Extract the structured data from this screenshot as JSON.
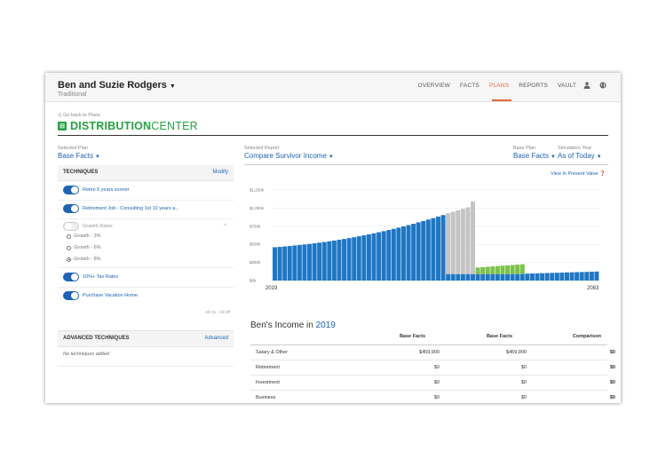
{
  "header": {
    "client_name": "Ben and Suzie Rodgers",
    "client_type": "Traditional",
    "nav": [
      "OVERVIEW",
      "FACTS",
      "PLANS",
      "REPORTS",
      "VAULT"
    ],
    "active_nav": "PLANS"
  },
  "back_link": "Go back to Plans",
  "brand": {
    "part1": "DISTRIBUTION",
    "part2": "CENTER",
    "color": "#27a243"
  },
  "selected_plan": {
    "label": "Selected Plan",
    "value": "Base Facts"
  },
  "selected_report": {
    "label": "Selected Report",
    "value": "Compare Survivor Income"
  },
  "base_plan": {
    "label": "Base Plan",
    "value": "Base Facts"
  },
  "simulation_year": {
    "label": "Simulation Year",
    "value": "As of Today"
  },
  "techniques": {
    "title": "TECHNIQUES",
    "modify": "Modify",
    "items": [
      {
        "label": "Retire 5 years sooner",
        "on": true
      },
      {
        "label": "Retirement Job - Consulting 1st 10 years a...",
        "on": true
      },
      {
        "label": "Growth Rates",
        "on": false
      },
      {
        "label": "10%+ Tax Rates",
        "on": true
      },
      {
        "label": "Purchase Vacation Home",
        "on": true
      }
    ],
    "growth_options": [
      "Growth - 3%",
      "Growth - 6%",
      "Growth - 8%"
    ],
    "growth_selected": "Growth - 8%",
    "all_on_off": "All On · All Off"
  },
  "advanced": {
    "title": "ADVANCED TECHNIQUES",
    "link": "Advanced",
    "empty": "No techniques added"
  },
  "present_value_link": "View In Present Value",
  "chart_data": {
    "type": "bar",
    "y_ticks": [
      "$1,250k",
      "$1,000k",
      "$750k",
      "$500k",
      "$250k",
      "$0k"
    ],
    "ylim": [
      0,
      1250
    ],
    "x_start_label": "2019",
    "x_end_label": "2083",
    "series_colors": {
      "base": "#1f77c4",
      "gap": "#c4c4c4",
      "survivor": "#7dc24b"
    },
    "values": [
      {
        "base": 460
      },
      {
        "base": 465
      },
      {
        "base": 471
      },
      {
        "base": 477
      },
      {
        "base": 484
      },
      {
        "base": 491
      },
      {
        "base": 498
      },
      {
        "base": 506
      },
      {
        "base": 514
      },
      {
        "base": 523
      },
      {
        "base": 532
      },
      {
        "base": 542
      },
      {
        "base": 552
      },
      {
        "base": 563
      },
      {
        "base": 574
      },
      {
        "base": 586
      },
      {
        "base": 598
      },
      {
        "base": 611
      },
      {
        "base": 624
      },
      {
        "base": 638
      },
      {
        "base": 652
      },
      {
        "base": 667
      },
      {
        "base": 682
      },
      {
        "base": 698
      },
      {
        "base": 714
      },
      {
        "base": 731
      },
      {
        "base": 748
      },
      {
        "base": 766
      },
      {
        "base": 784
      },
      {
        "base": 803
      },
      {
        "base": 822
      },
      {
        "base": 842
      },
      {
        "base": 862
      },
      {
        "base": 883
      },
      {
        "base": 904
      },
      {
        "base": 90,
        "gap": 840
      },
      {
        "base": 90,
        "gap": 860
      },
      {
        "base": 90,
        "gap": 880
      },
      {
        "base": 90,
        "gap": 900
      },
      {
        "base": 90,
        "gap": 920
      },
      {
        "base": 90,
        "gap": 1000
      },
      {
        "base": 90,
        "survivor": 90
      },
      {
        "base": 90,
        "survivor": 95
      },
      {
        "base": 90,
        "survivor": 100
      },
      {
        "base": 90,
        "survivor": 105
      },
      {
        "base": 90,
        "survivor": 110
      },
      {
        "base": 90,
        "survivor": 115
      },
      {
        "base": 90,
        "survivor": 120
      },
      {
        "base": 90,
        "survivor": 125
      },
      {
        "base": 90,
        "survivor": 130
      },
      {
        "base": 90,
        "survivor": 135
      },
      {
        "base": 96
      },
      {
        "base": 98
      },
      {
        "base": 100
      },
      {
        "base": 102
      },
      {
        "base": 104
      },
      {
        "base": 106
      },
      {
        "base": 108
      },
      {
        "base": 110
      },
      {
        "base": 112
      },
      {
        "base": 114
      },
      {
        "base": 116
      },
      {
        "base": 118
      },
      {
        "base": 120
      },
      {
        "base": 122
      },
      {
        "base": 124
      }
    ]
  },
  "income": {
    "title_prefix": "Ben's Income in",
    "year": "2019",
    "columns": [
      "Base Facts",
      "Base Facts",
      "Comparison"
    ],
    "rows": [
      {
        "name": "Salary & Other",
        "a": "$459,900",
        "b": "$459,900",
        "c": "$0"
      },
      {
        "name": "Retirement",
        "a": "$0",
        "b": "$0",
        "c": "$0"
      },
      {
        "name": "Investment",
        "a": "$0",
        "b": "$0",
        "c": "$0"
      },
      {
        "name": "Business",
        "a": "$0",
        "b": "$0",
        "c": "$0"
      }
    ]
  }
}
